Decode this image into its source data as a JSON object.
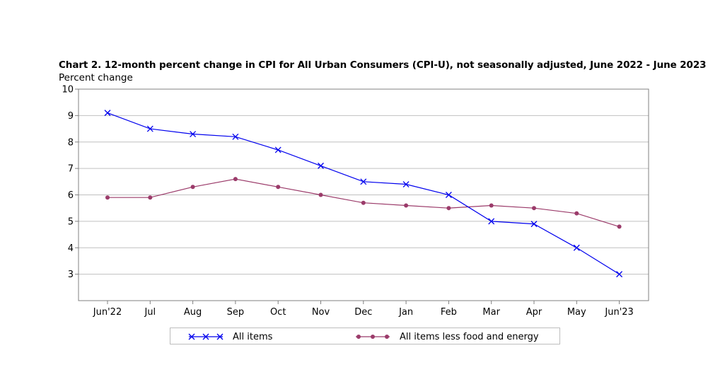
{
  "title": "Chart 2. 12-month percent change in CPI for All Urban Consumers (CPI-U), not seasonally adjusted, June 2022 - June 2023",
  "colors": {
    "all_items": "#0000ee",
    "core": "#9b3b6a",
    "grid": "#c0c0c0",
    "axis": "#808080"
  },
  "chart_data": {
    "type": "line",
    "title": "Chart 2. 12-month percent change in CPI for All Urban Consumers (CPI-U), not seasonally adjusted, June 2022 - June 2023",
    "ylabel": "Percent change",
    "xlabel": "",
    "categories": [
      "Jun'22",
      "Jul",
      "Aug",
      "Sep",
      "Oct",
      "Nov",
      "Dec",
      "Jan",
      "Feb",
      "Mar",
      "Apr",
      "May",
      "Jun'23"
    ],
    "ylim": [
      2,
      10
    ],
    "yticks": [
      3,
      4,
      5,
      6,
      7,
      8,
      9,
      10
    ],
    "grid": true,
    "legend_position": "bottom",
    "series": [
      {
        "name": "All items",
        "marker": "x",
        "color": "#0000ee",
        "values": [
          9.1,
          8.5,
          8.3,
          8.2,
          7.7,
          7.1,
          6.5,
          6.4,
          6.0,
          5.0,
          4.9,
          4.0,
          3.0
        ]
      },
      {
        "name": "All items less food and energy",
        "marker": "circle",
        "color": "#9b3b6a",
        "values": [
          5.9,
          5.9,
          6.3,
          6.6,
          6.3,
          6.0,
          5.7,
          5.6,
          5.5,
          5.6,
          5.5,
          5.3,
          4.8
        ]
      }
    ]
  }
}
